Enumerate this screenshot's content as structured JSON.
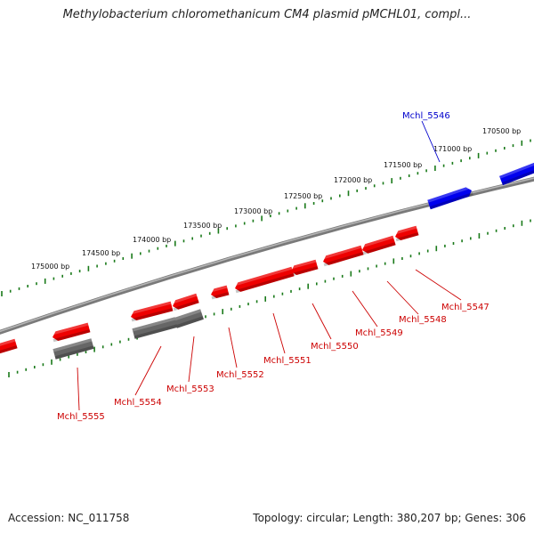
{
  "title": "Methylobacterium chloromethanicum CM4 plasmid pMCHL01, compl...",
  "footer": {
    "accession": "Accession: NC_011758",
    "topology": "Topology: circular; Length: 380,207 bp; Genes: 306"
  },
  "colors": {
    "forward_gene": "#0000ee",
    "reverse_gene": "#ee0000",
    "rna_gene": "#666666",
    "backbone": "#888888",
    "ticks": "#1a7a1a",
    "label_red": "#cc0000",
    "label_blue": "#0000cc"
  },
  "scale_labels": [
    "170500 bp",
    "171000 bp",
    "171500 bp",
    "172000 bp",
    "172500 bp",
    "173000 bp",
    "173500 bp",
    "174000 bp",
    "174500 bp",
    "175000 bp"
  ],
  "gene_labels": [
    {
      "text": "Mchl_5546",
      "strand": "forward"
    },
    {
      "text": "Mchl_5547",
      "strand": "reverse"
    },
    {
      "text": "Mchl_5548",
      "strand": "reverse"
    },
    {
      "text": "Mchl_5549",
      "strand": "reverse"
    },
    {
      "text": "Mchl_5550",
      "strand": "reverse"
    },
    {
      "text": "Mchl_5551",
      "strand": "reverse"
    },
    {
      "text": "Mchl_5552",
      "strand": "reverse"
    },
    {
      "text": "Mchl_5553",
      "strand": "reverse"
    },
    {
      "text": "Mchl_5554",
      "strand": "reverse"
    },
    {
      "text": "Mchl_5555",
      "strand": "reverse"
    }
  ]
}
